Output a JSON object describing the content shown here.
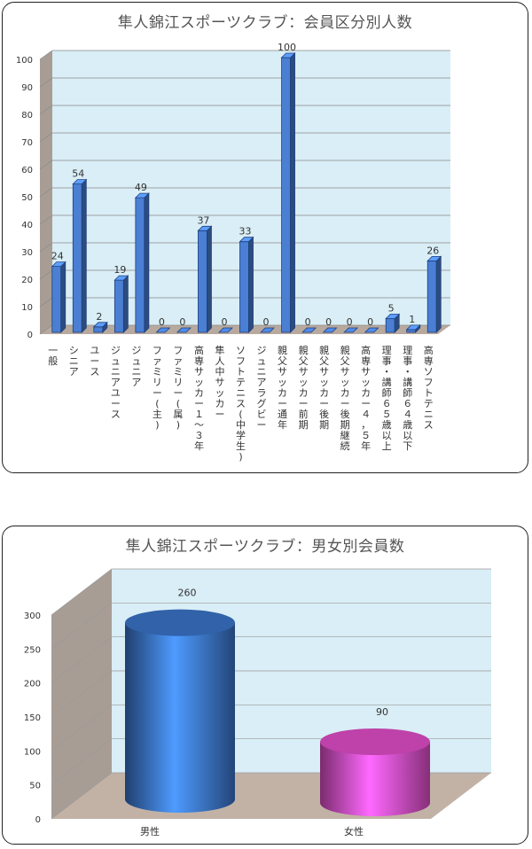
{
  "chart_data": [
    {
      "type": "bar",
      "title": "隼人錦江スポーツクラブ：会員区分別人数",
      "categories": [
        "一般",
        "シニア",
        "ユース",
        "ジュニアユース",
        "ジュニア",
        "ファミリー(主)",
        "ファミリー(属)",
        "高専サッカー１～３年",
        "隼人中サッカー",
        "ソフトテニス(中学生)",
        "ジュニアラグビー",
        "親父サッカー通年",
        "親父サッカー前期",
        "親父サッカー後期",
        "親父サッカー後期継続",
        "高専サッカー４，５年",
        "理事・講師６５歳以上",
        "理事・講師６４歳以下",
        "高専ソフトテニス"
      ],
      "values": [
        24,
        54,
        2,
        19,
        49,
        0,
        0,
        37,
        0,
        33,
        0,
        100,
        0,
        0,
        0,
        0,
        5,
        1,
        26
      ],
      "ylim": [
        0,
        100
      ],
      "yticks": [
        "0",
        "10",
        "20",
        "30",
        "40",
        "50",
        "60",
        "70",
        "80",
        "90",
        "100"
      ],
      "grid": true,
      "colors": {
        "bar": "#4a7fd4",
        "wall": "#d9eef6",
        "side": "#a89d95"
      }
    },
    {
      "type": "bar",
      "title": "隼人錦江スポーツクラブ：男女別会員数",
      "categories": [
        "男性",
        "女性"
      ],
      "values": [
        260,
        90
      ],
      "ylim": [
        0,
        300
      ],
      "yticks": [
        "0",
        "50",
        "100",
        "150",
        "200",
        "250",
        "300"
      ],
      "grid": true,
      "colors": {
        "series": [
          "#3a73c8",
          "#e04ec8"
        ],
        "wall": "#d9eef6",
        "floor": "#c2b2a6"
      }
    }
  ]
}
